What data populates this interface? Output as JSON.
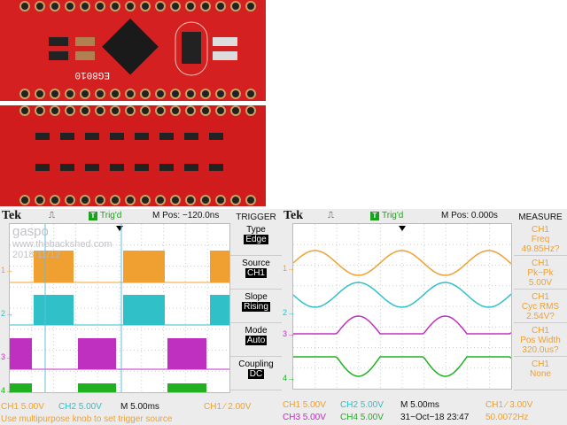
{
  "photo": {
    "board_top_label": "EG8010",
    "colors": {
      "pcb": "#d42020",
      "silk": "#ffffff"
    }
  },
  "left_scope": {
    "brand": "Tek",
    "trigger_status": "Trig'd",
    "mpos": "M Pos: −120.0ns",
    "watermark": [
      "gaspo",
      "www.thebackshed.com",
      "2018/11/12"
    ],
    "menu_title": "TRIGGER",
    "menu": [
      {
        "label": "Type",
        "value": "Edge"
      },
      {
        "label": "Source",
        "value": "CH1"
      },
      {
        "label": "Slope",
        "value": "Rising"
      },
      {
        "label": "Mode",
        "value": "Auto"
      },
      {
        "label": "Coupling",
        "value": "DC"
      }
    ],
    "ch1": "CH1  5.00V",
    "ch2": "CH2  5.00V",
    "timebase": "M 5.00ms",
    "trigger_level": "CH1  ∕  2.00V",
    "message": "Use multipurpose knob to set trigger source"
  },
  "right_scope": {
    "brand": "Tek",
    "trigger_status": "Trig'd",
    "mpos": "M Pos: 0.000s",
    "menu_title": "MEASURE",
    "measures": [
      {
        "ch": "CH1",
        "label": "Freq",
        "value": "49.85Hz?"
      },
      {
        "ch": "CH1",
        "label": "Pk−Pk",
        "value": "5.00V"
      },
      {
        "ch": "CH1",
        "label": "Cyc RMS",
        "value": "2.54V?"
      },
      {
        "ch": "CH1",
        "label": "Pos Width",
        "value": "320.0us?"
      },
      {
        "ch": "CH1",
        "label": "None",
        "value": ""
      }
    ],
    "ch1": "CH1  5.00V",
    "ch2": "CH2  5.00V",
    "ch3": "CH3  5.00V",
    "ch4": "CH4  5.00V",
    "timebase": "M 5.00ms",
    "datetime": "31−Oct−18 23:47",
    "trigger_level": "CH1  ∕  3.00V",
    "trigger_freq": "50.0072Hz"
  },
  "colors": {
    "ch1": "#f0a030",
    "ch2": "#30c0c8",
    "ch3": "#c030c0",
    "ch4": "#20b020"
  }
}
